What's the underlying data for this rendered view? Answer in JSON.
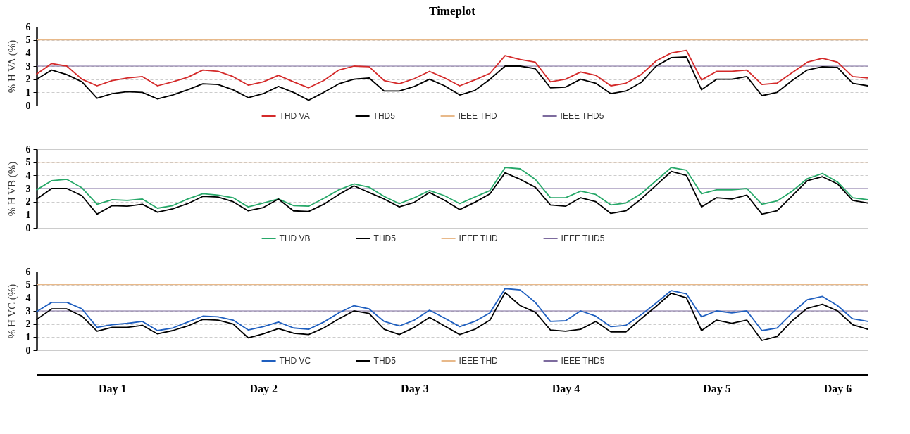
{
  "chart_data": [
    {
      "type": "line",
      "title": "Timeplot",
      "ylabel": "% H  VA (%)",
      "categories": [
        null,
        null,
        null,
        null,
        null,
        null,
        null,
        null,
        null,
        null,
        null,
        null,
        null,
        null,
        null,
        null,
        null,
        null,
        null,
        null,
        null,
        null,
        null,
        null,
        null,
        null,
        null,
        null,
        null,
        null,
        null,
        null,
        null,
        null,
        null,
        null,
        null,
        null,
        null,
        null,
        null,
        null,
        null,
        null,
        null,
        null,
        null,
        null,
        null,
        null,
        null,
        null,
        null,
        null,
        null,
        null
      ],
      "ylim": [
        0,
        6
      ],
      "yticks": [
        0,
        1,
        2,
        3,
        4,
        5,
        6
      ],
      "grid": "y",
      "legend": "bottom",
      "tick_labels": "y",
      "ref_lines": [
        {
          "axis": "y",
          "value": 5,
          "label": "IEEE THD",
          "color": "#e8b98a"
        },
        {
          "axis": "y",
          "value": 3,
          "label": "IEEE THD5",
          "color": "#7d6b9e"
        }
      ],
      "series": [
        {
          "name": "THD VA",
          "color": "#d42a2a",
          "values": [
            2.4,
            3.2,
            3.0,
            2.0,
            1.5,
            1.9,
            2.1,
            2.2,
            1.5,
            1.8,
            2.15,
            2.7,
            2.6,
            2.2,
            1.55,
            1.8,
            2.3,
            1.8,
            1.35,
            1.9,
            2.7,
            3.0,
            2.95,
            1.9,
            1.65,
            2.05,
            2.6,
            2.1,
            1.5,
            1.95,
            2.45,
            3.8,
            3.5,
            3.3,
            1.8,
            2.0,
            2.55,
            2.3,
            1.5,
            1.7,
            2.35,
            3.4,
            4.0,
            4.2,
            1.95,
            2.6,
            2.6,
            2.7,
            1.6,
            1.7,
            2.5,
            3.3,
            3.6,
            3.3,
            2.2,
            2.1
          ]
        },
        {
          "name": "THD5",
          "color": "#000000",
          "values": [
            2.0,
            2.7,
            2.35,
            1.8,
            0.55,
            0.9,
            1.05,
            1.0,
            0.5,
            0.8,
            1.2,
            1.65,
            1.6,
            1.2,
            0.6,
            0.9,
            1.45,
            1.0,
            0.4,
            1.0,
            1.65,
            2.0,
            2.1,
            1.1,
            1.1,
            1.45,
            2.0,
            1.5,
            0.8,
            1.15,
            2.0,
            3.0,
            3.0,
            2.8,
            1.35,
            1.4,
            2.0,
            1.7,
            0.9,
            1.1,
            1.75,
            3.0,
            3.65,
            3.7,
            1.2,
            2.0,
            2.0,
            2.2,
            0.75,
            1.0,
            1.9,
            2.7,
            2.95,
            2.9,
            1.7,
            1.5
          ]
        }
      ]
    },
    {
      "type": "line",
      "ylabel": "% H  VB (%)",
      "categories": [
        null,
        null,
        null,
        null,
        null,
        null,
        null,
        null,
        null,
        null,
        null,
        null,
        null,
        null,
        null,
        null,
        null,
        null,
        null,
        null,
        null,
        null,
        null,
        null,
        null,
        null,
        null,
        null,
        null,
        null,
        null,
        null,
        null,
        null,
        null,
        null,
        null,
        null,
        null,
        null,
        null,
        null,
        null,
        null,
        null,
        null,
        null,
        null,
        null,
        null,
        null,
        null,
        null,
        null,
        null,
        null
      ],
      "ylim": [
        0,
        6
      ],
      "yticks": [
        0,
        1,
        2,
        3,
        4,
        5,
        6
      ],
      "grid": "y",
      "legend": "bottom",
      "tick_labels": "y",
      "ref_lines": [
        {
          "axis": "y",
          "value": 5,
          "label": "IEEE THD",
          "color": "#e8b98a"
        },
        {
          "axis": "y",
          "value": 3,
          "label": "IEEE THD5",
          "color": "#7d6b9e"
        }
      ],
      "series": [
        {
          "name": "THD VB",
          "color": "#27a869",
          "values": [
            2.9,
            3.6,
            3.7,
            3.05,
            1.8,
            2.15,
            2.1,
            2.2,
            1.5,
            1.7,
            2.2,
            2.6,
            2.5,
            2.3,
            1.6,
            1.9,
            2.2,
            1.7,
            1.65,
            2.25,
            2.9,
            3.35,
            3.1,
            2.4,
            1.85,
            2.3,
            2.85,
            2.45,
            1.85,
            2.35,
            2.85,
            4.6,
            4.5,
            3.7,
            2.3,
            2.3,
            2.8,
            2.55,
            1.75,
            1.9,
            2.6,
            3.6,
            4.6,
            4.4,
            2.6,
            2.9,
            2.9,
            3.0,
            1.8,
            2.05,
            2.8,
            3.75,
            4.15,
            3.5,
            2.3,
            2.15
          ]
        },
        {
          "name": "THD5",
          "color": "#000000",
          "values": [
            2.2,
            3.0,
            3.0,
            2.45,
            1.05,
            1.7,
            1.65,
            1.8,
            1.2,
            1.45,
            1.85,
            2.4,
            2.35,
            2.0,
            1.3,
            1.55,
            2.2,
            1.3,
            1.25,
            1.8,
            2.55,
            3.2,
            2.7,
            2.2,
            1.6,
            1.95,
            2.7,
            2.1,
            1.4,
            1.95,
            2.6,
            4.2,
            3.7,
            3.1,
            1.75,
            1.65,
            2.3,
            2.0,
            1.1,
            1.3,
            2.2,
            3.25,
            4.3,
            4.0,
            1.6,
            2.3,
            2.2,
            2.5,
            1.05,
            1.3,
            2.45,
            3.6,
            3.9,
            3.35,
            2.1,
            1.9
          ]
        }
      ]
    },
    {
      "type": "line",
      "ylabel": "% H  VC (%)",
      "categories": [
        null,
        null,
        null,
        null,
        null,
        "Day 1",
        null,
        null,
        null,
        null,
        null,
        null,
        null,
        null,
        null,
        "Day 2",
        null,
        null,
        null,
        null,
        null,
        null,
        null,
        null,
        null,
        "Day 3",
        null,
        null,
        null,
        null,
        null,
        null,
        null,
        null,
        null,
        "Day 4",
        null,
        null,
        null,
        null,
        null,
        null,
        null,
        null,
        null,
        "Day 5",
        null,
        null,
        null,
        null,
        null,
        null,
        null,
        "Day 6",
        null,
        null
      ],
      "ylim": [
        0,
        6
      ],
      "yticks": [
        0,
        1,
        2,
        3,
        4,
        5,
        6
      ],
      "grid": "y",
      "legend": "bottom",
      "ref_lines": [
        {
          "axis": "y",
          "value": 5,
          "label": "IEEE THD",
          "color": "#e8b98a"
        },
        {
          "axis": "y",
          "value": 3,
          "label": "IEEE THD5",
          "color": "#7d6b9e"
        }
      ],
      "series": [
        {
          "name": "THD VC",
          "color": "#1f5fbf",
          "values": [
            2.95,
            3.65,
            3.65,
            3.15,
            1.75,
            1.95,
            2.05,
            2.2,
            1.5,
            1.7,
            2.15,
            2.6,
            2.55,
            2.3,
            1.55,
            1.8,
            2.15,
            1.7,
            1.6,
            2.15,
            2.85,
            3.4,
            3.15,
            2.2,
            1.85,
            2.3,
            3.05,
            2.45,
            1.8,
            2.2,
            2.85,
            4.7,
            4.6,
            3.65,
            2.2,
            2.25,
            3.0,
            2.6,
            1.8,
            1.9,
            2.7,
            3.6,
            4.55,
            4.3,
            2.55,
            3.0,
            2.85,
            3.0,
            1.5,
            1.7,
            2.85,
            3.85,
            4.1,
            3.4,
            2.4,
            2.2
          ]
        },
        {
          "name": "THD5",
          "color": "#000000",
          "values": [
            2.35,
            3.15,
            3.15,
            2.6,
            1.45,
            1.75,
            1.75,
            1.9,
            1.25,
            1.5,
            1.85,
            2.35,
            2.3,
            2.0,
            0.95,
            1.25,
            1.65,
            1.3,
            1.2,
            1.7,
            2.4,
            3.0,
            2.8,
            1.6,
            1.2,
            1.75,
            2.5,
            1.85,
            1.2,
            1.6,
            2.3,
            4.4,
            3.4,
            2.9,
            1.55,
            1.45,
            1.6,
            2.2,
            1.4,
            1.4,
            2.4,
            3.35,
            4.35,
            4.0,
            1.5,
            2.3,
            2.05,
            2.3,
            0.75,
            1.05,
            2.25,
            3.2,
            3.5,
            3.0,
            1.95,
            1.6
          ]
        }
      ]
    }
  ]
}
